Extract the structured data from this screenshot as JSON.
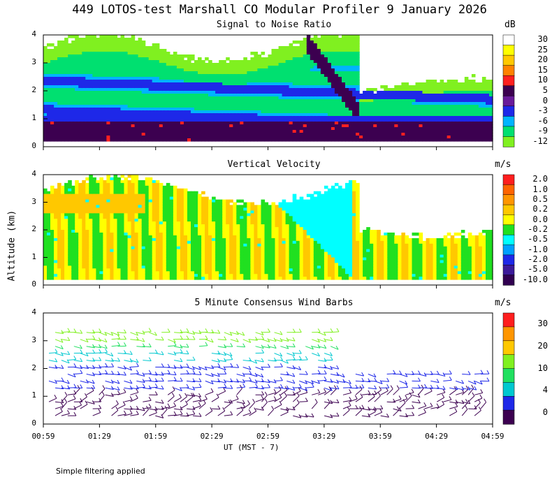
{
  "title": "449 LOTOS-test Marshall CO Modular Profiler  9 January 2026",
  "y_axis_label": "Altitude (km)",
  "x_axis_label": "UT  (MST - 7)",
  "footnote": "Simple filtering applied",
  "x_ticks": [
    "00:59",
    "01:29",
    "01:59",
    "02:29",
    "02:59",
    "03:29",
    "03:59",
    "04:29",
    "04:59"
  ],
  "y_ticks": [
    "0",
    "1",
    "2",
    "3",
    "4"
  ],
  "chart_data": [
    {
      "type": "heatmap",
      "title": "Signal to Noise Ratio",
      "units": "dB",
      "ylim": [
        0,
        4
      ],
      "colorbar": {
        "labels": [
          "30",
          "25",
          "20",
          "15",
          "10",
          "5",
          "0",
          "-3",
          "-6",
          "-9",
          "-12"
        ],
        "colors": [
          "#ffffff",
          "#ffff00",
          "#ffc800",
          "#ff8200",
          "#ff2020",
          "#3c0050",
          "#6a1a9a",
          "#1e28e8",
          "#00b4ff",
          "#00e070",
          "#80f020"
        ]
      }
    },
    {
      "type": "heatmap",
      "title": "Vertical Velocity",
      "units": "m/s",
      "ylim": [
        0,
        4
      ],
      "colorbar": {
        "labels": [
          "2.0",
          "1.0",
          "0.5",
          "0.2",
          "0.0",
          "-0.2",
          "-0.5",
          "-1.0",
          "-2.0",
          "-5.0",
          "-10.0"
        ],
        "colors": [
          "#ff1e1e",
          "#ff6400",
          "#ff9600",
          "#ffc800",
          "#ffff00",
          "#20e020",
          "#00ffff",
          "#00a0ff",
          "#1e28e8",
          "#3c1a9a",
          "#300050"
        ]
      }
    },
    {
      "type": "scatter",
      "title": "5 Minute Consensus Wind Barbs",
      "units": "m/s",
      "ylim": [
        0,
        4
      ],
      "colorbar": {
        "labels": [
          "30",
          "20",
          "10",
          "4",
          "0"
        ],
        "colors": [
          "#ff1e1e",
          "#ff9600",
          "#ffc800",
          "#80f020",
          "#20e060",
          "#00c8d0",
          "#1e28e8",
          "#3c0050"
        ]
      }
    }
  ]
}
